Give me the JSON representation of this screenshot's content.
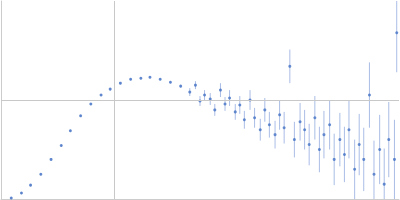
{
  "chart_data": {
    "type": "scatter",
    "x": [
      0.09,
      0.18,
      0.26,
      0.35,
      0.44,
      0.53,
      0.61,
      0.7,
      0.79,
      0.88,
      0.96,
      1.05,
      1.14,
      1.23,
      1.31,
      1.4,
      1.49,
      1.58,
      1.66,
      1.71,
      1.75,
      1.79,
      1.84,
      1.88,
      1.93,
      1.97,
      2.01,
      2.06,
      2.1,
      2.14,
      2.19,
      2.23,
      2.28,
      2.32,
      2.36,
      2.41,
      2.45,
      2.49,
      2.54,
      2.58,
      2.63,
      2.67,
      2.71,
      2.76,
      2.8,
      2.84,
      2.89,
      2.93,
      2.98,
      3.02,
      3.06,
      3.11,
      3.15,
      3.19,
      3.24,
      3.28,
      3.33,
      3.37,
      3.41,
      3.46,
      3.48
    ],
    "values": [
      0.01,
      0.06,
      0.14,
      0.25,
      0.4,
      0.54,
      0.69,
      0.84,
      0.96,
      1.05,
      1.11,
      1.17,
      1.21,
      1.22,
      1.23,
      1.21,
      1.18,
      1.14,
      1.08,
      1.15,
      0.99,
      1.05,
      1.01,
      0.9,
      1.1,
      0.96,
      1.02,
      0.88,
      0.95,
      0.8,
      1.0,
      0.82,
      0.7,
      0.9,
      0.75,
      0.65,
      0.85,
      0.72,
      1.34,
      0.6,
      0.78,
      0.7,
      0.55,
      0.82,
      0.5,
      0.65,
      0.75,
      0.4,
      0.6,
      0.45,
      0.7,
      0.3,
      0.55,
      0.4,
      1.05,
      0.25,
      0.5,
      0.15,
      0.6,
      0.4,
      1.68
    ],
    "errors": [
      0.01,
      0.01,
      0.01,
      0.01,
      0.01,
      0.01,
      0.01,
      0.01,
      0.01,
      0.01,
      0.01,
      0.01,
      0.01,
      0.01,
      0.01,
      0.01,
      0.01,
      0.01,
      0.04,
      0.04,
      0.05,
      0.05,
      0.06,
      0.06,
      0.07,
      0.07,
      0.08,
      0.08,
      0.09,
      0.09,
      0.1,
      0.1,
      0.11,
      0.12,
      0.13,
      0.14,
      0.15,
      0.16,
      0.17,
      0.18,
      0.19,
      0.2,
      0.21,
      0.22,
      0.23,
      0.24,
      0.25,
      0.26,
      0.27,
      0.28,
      0.29,
      0.3,
      0.31,
      0.32,
      0.33,
      0.34,
      0.35,
      0.36,
      0.38,
      0.4,
      0.4
    ],
    "color": "#4472c4",
    "xlim": [
      0,
      3.5
    ],
    "xticks": [
      1
    ],
    "ylim": [
      0,
      2
    ],
    "yticks": [
      1
    ],
    "grid": true,
    "tick_labels": false,
    "marker": "circle"
  }
}
